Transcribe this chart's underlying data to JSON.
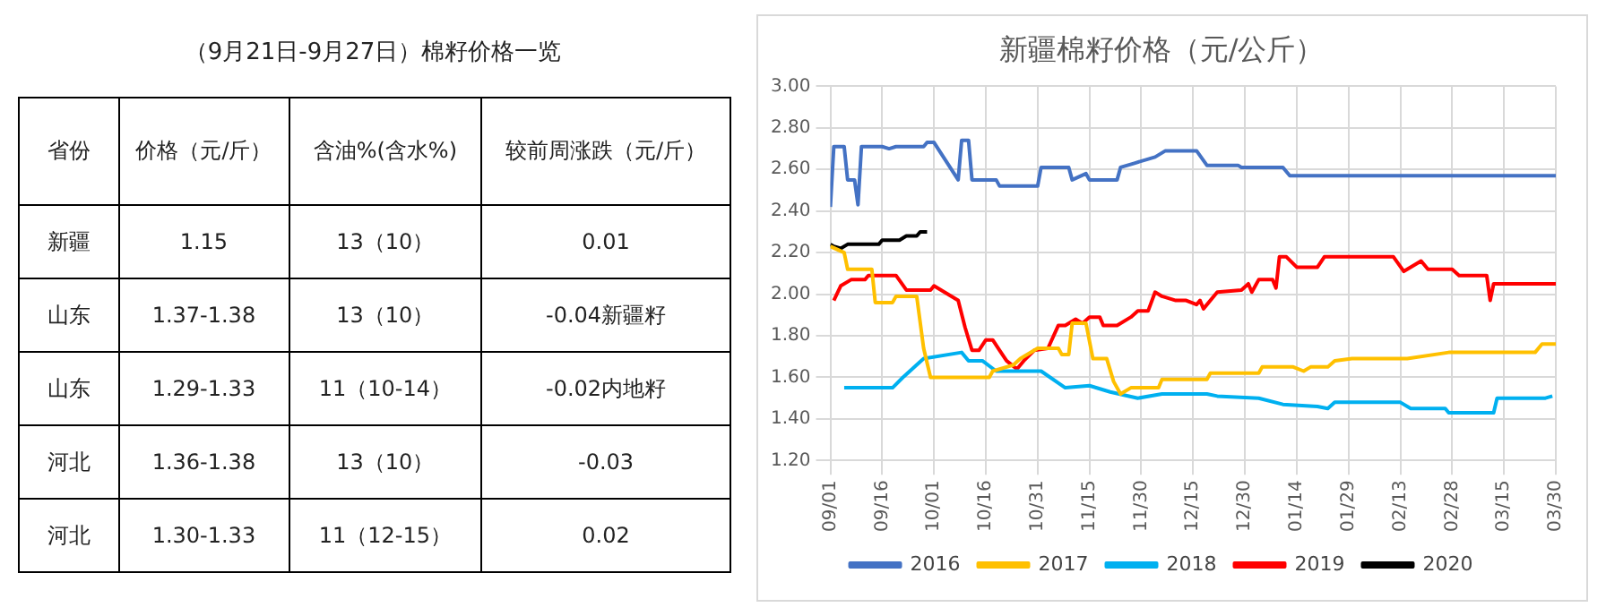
{
  "chart_data": [
    {
      "type": "other",
      "title": "（9月21日-9月27日）棉籽价格一览",
      "annotations": [
        "省份",
        "价格（元/斤）",
        "含油%(含水%)",
        "较前周涨跌（元/斤）",
        "新疆",
        "1.15",
        "13（10）",
        "0.01",
        "山东",
        "1.37-1.38",
        "13（10）",
        "-0.04新疆籽",
        "山东",
        "1.29-1.33",
        "11（10-14）",
        "-0.02内地籽",
        "河北",
        "1.36-1.38",
        "13（10）",
        "-0.03",
        "河北",
        "1.30-1.33",
        "11（12-15）",
        "0.02"
      ]
    },
    {
      "type": "line",
      "title": "新疆棉籽价格（元/公斤）",
      "xlim": [
        "2018-09-01",
        "2019-03-30"
      ],
      "xticks": [
        {
          "value": "2018-09-01",
          "label": "09/01"
        },
        {
          "value": "2018-09-16",
          "label": "09/16"
        },
        {
          "value": "2018-10-01",
          "label": "10/01"
        },
        {
          "value": "2018-10-16",
          "label": "10/16"
        },
        {
          "value": "2018-10-31",
          "label": "10/31"
        },
        {
          "value": "2018-11-15",
          "label": "11/15"
        },
        {
          "value": "2018-11-30",
          "label": "11/30"
        },
        {
          "value": "2018-12-15",
          "label": "12/15"
        },
        {
          "value": "2018-12-30",
          "label": "12/30"
        },
        {
          "value": "2019-01-14",
          "label": "01/14"
        },
        {
          "value": "2019-01-29",
          "label": "01/29"
        },
        {
          "value": "2019-02-13",
          "label": "02/13"
        },
        {
          "value": "2019-02-28",
          "label": "02/28"
        },
        {
          "value": "2019-03-15",
          "label": "03/15"
        },
        {
          "value": "2019-03-30",
          "label": "03/30"
        }
      ],
      "ylim": [
        1.2,
        3.0
      ],
      "yticks": [
        {
          "value": 1.2,
          "label": "1.20"
        },
        {
          "value": 1.4,
          "label": "1.40"
        },
        {
          "value": 1.6,
          "label": "1.60"
        },
        {
          "value": 1.8,
          "label": "1.80"
        },
        {
          "value": 2.0,
          "label": "2.00"
        },
        {
          "value": 2.2,
          "label": "2.20"
        },
        {
          "value": 2.4,
          "label": "2.40"
        },
        {
          "value": 2.6,
          "label": "2.60"
        },
        {
          "value": 2.8,
          "label": "2.80"
        },
        {
          "value": 3.0,
          "label": "3.00"
        }
      ],
      "grid": true,
      "legend": "bottom",
      "marker": "none",
      "line_style": "solid",
      "series": [
        {
          "name": "2016",
          "color": "#4472c4",
          "x": [
            "2018-09-01",
            "2018-09-02",
            "2018-09-05",
            "2018-09-06",
            "2018-09-08",
            "2018-09-09",
            "2018-09-10",
            "2018-09-16",
            "2018-09-18",
            "2018-09-20",
            "2018-09-28",
            "2018-09-29",
            "2018-10-01",
            "2018-10-08",
            "2018-10-09",
            "2018-10-11",
            "2018-10-12",
            "2018-10-19",
            "2018-10-20",
            "2018-10-31",
            "2018-11-01",
            "2018-11-09",
            "2018-11-10",
            "2018-11-14",
            "2018-11-15",
            "2018-11-23",
            "2018-11-24",
            "2018-11-28",
            "2018-12-04",
            "2018-12-07",
            "2018-12-16",
            "2018-12-19",
            "2018-12-28",
            "2018-12-29",
            "2019-01-10",
            "2019-01-12",
            "2019-03-30"
          ],
          "values": [
            2.42,
            2.71,
            2.71,
            2.55,
            2.55,
            2.43,
            2.71,
            2.71,
            2.7,
            2.71,
            2.71,
            2.73,
            2.73,
            2.55,
            2.74,
            2.74,
            2.55,
            2.55,
            2.52,
            2.52,
            2.61,
            2.61,
            2.55,
            2.58,
            2.55,
            2.55,
            2.61,
            2.63,
            2.66,
            2.69,
            2.69,
            2.62,
            2.62,
            2.61,
            2.61,
            2.57,
            2.57
          ]
        },
        {
          "name": "2017",
          "color": "#ffc000",
          "x": [
            "2018-09-01",
            "2018-09-05",
            "2018-09-06",
            "2018-09-13",
            "2018-09-14",
            "2018-09-19",
            "2018-09-20",
            "2018-09-26",
            "2018-09-28",
            "2018-09-30",
            "2018-10-17",
            "2018-10-18",
            "2018-10-24",
            "2018-10-26",
            "2018-10-31",
            "2018-11-06",
            "2018-11-07",
            "2018-11-09",
            "2018-11-10",
            "2018-11-14",
            "2018-11-16",
            "2018-11-20",
            "2018-11-22",
            "2018-11-24",
            "2018-11-27",
            "2018-12-05",
            "2018-12-06",
            "2018-12-19",
            "2018-12-20",
            "2019-01-03",
            "2019-01-04",
            "2019-01-13",
            "2019-01-16",
            "2019-01-18",
            "2019-01-23",
            "2019-01-25",
            "2019-01-30",
            "2019-02-15",
            "2019-02-27",
            "2019-03-24",
            "2019-03-26",
            "2019-03-30"
          ],
          "values": [
            2.23,
            2.2,
            2.12,
            2.12,
            1.96,
            1.96,
            1.99,
            1.99,
            1.74,
            1.6,
            1.6,
            1.63,
            1.66,
            1.69,
            1.74,
            1.74,
            1.71,
            1.71,
            1.86,
            1.86,
            1.69,
            1.69,
            1.58,
            1.52,
            1.55,
            1.55,
            1.59,
            1.59,
            1.62,
            1.62,
            1.65,
            1.65,
            1.63,
            1.65,
            1.65,
            1.68,
            1.69,
            1.69,
            1.72,
            1.72,
            1.76,
            1.76
          ]
        },
        {
          "name": "2018",
          "color": "#00b0f0",
          "x": [
            "2018-09-05",
            "2018-09-19",
            "2018-09-22",
            "2018-09-28",
            "2018-10-09",
            "2018-10-11",
            "2018-10-15",
            "2018-10-19",
            "2018-11-01",
            "2018-11-08",
            "2018-11-15",
            "2018-11-21",
            "2018-11-29",
            "2018-12-06",
            "2018-12-19",
            "2018-12-22",
            "2019-01-03",
            "2019-01-10",
            "2019-01-20",
            "2019-01-23",
            "2019-01-25",
            "2019-02-13",
            "2019-02-16",
            "2019-02-26",
            "2019-02-27",
            "2019-03-12",
            "2019-03-13",
            "2019-03-27",
            "2019-03-29"
          ],
          "values": [
            1.55,
            1.55,
            1.6,
            1.69,
            1.72,
            1.68,
            1.68,
            1.63,
            1.63,
            1.55,
            1.56,
            1.53,
            1.5,
            1.52,
            1.52,
            1.51,
            1.5,
            1.47,
            1.46,
            1.45,
            1.48,
            1.48,
            1.45,
            1.45,
            1.43,
            1.43,
            1.5,
            1.5,
            1.51
          ]
        },
        {
          "name": "2019",
          "color": "#ff0000",
          "x": [
            "2018-09-02",
            "2018-09-04",
            "2018-09-07",
            "2018-09-11",
            "2018-09-12",
            "2018-09-20",
            "2018-09-23",
            "2018-09-30",
            "2018-10-01",
            "2018-10-08",
            "2018-10-10",
            "2018-10-12",
            "2018-10-14",
            "2018-10-16",
            "2018-10-18",
            "2018-10-20",
            "2018-10-22",
            "2018-10-25",
            "2018-10-27",
            "2018-10-30",
            "2018-11-03",
            "2018-11-06",
            "2018-11-08",
            "2018-11-11",
            "2018-11-13",
            "2018-11-15",
            "2018-11-18",
            "2018-11-19",
            "2018-11-23",
            "2018-11-27",
            "2018-11-29",
            "2018-12-02",
            "2018-12-04",
            "2018-12-06",
            "2018-12-10",
            "2018-12-13",
            "2018-12-16",
            "2018-12-17",
            "2018-12-18",
            "2018-12-22",
            "2018-12-29",
            "2018-12-31",
            "2019-01-01",
            "2019-01-03",
            "2019-01-07",
            "2019-01-08",
            "2019-01-09",
            "2019-01-11",
            "2019-01-14",
            "2019-01-20",
            "2019-01-22",
            "2019-02-11",
            "2019-02-14",
            "2019-02-19",
            "2019-02-21",
            "2019-02-28",
            "2019-03-02",
            "2019-03-10",
            "2019-03-11",
            "2019-03-12",
            "2019-03-30"
          ],
          "values": [
            1.97,
            2.04,
            2.07,
            2.07,
            2.09,
            2.09,
            2.02,
            2.02,
            2.04,
            1.97,
            1.84,
            1.73,
            1.73,
            1.78,
            1.78,
            1.73,
            1.68,
            1.64,
            1.68,
            1.73,
            1.74,
            1.85,
            1.85,
            1.88,
            1.86,
            1.89,
            1.89,
            1.85,
            1.85,
            1.89,
            1.92,
            1.92,
            2.01,
            1.99,
            1.97,
            1.97,
            1.95,
            1.97,
            1.93,
            2.01,
            2.02,
            2.05,
            2.01,
            2.07,
            2.07,
            2.03,
            2.18,
            2.18,
            2.13,
            2.13,
            2.18,
            2.18,
            2.11,
            2.16,
            2.12,
            2.12,
            2.09,
            2.09,
            1.97,
            2.05,
            2.05
          ]
        },
        {
          "name": "2020",
          "color": "#000000",
          "x": [
            "2018-09-01",
            "2018-09-02",
            "2018-09-04",
            "2018-09-06",
            "2018-09-15",
            "2018-09-16",
            "2018-09-21",
            "2018-09-23",
            "2018-09-26",
            "2018-09-27",
            "2018-09-29"
          ],
          "values": [
            2.24,
            2.23,
            2.22,
            2.24,
            2.24,
            2.26,
            2.26,
            2.28,
            2.28,
            2.3,
            2.3
          ]
        }
      ]
    }
  ]
}
